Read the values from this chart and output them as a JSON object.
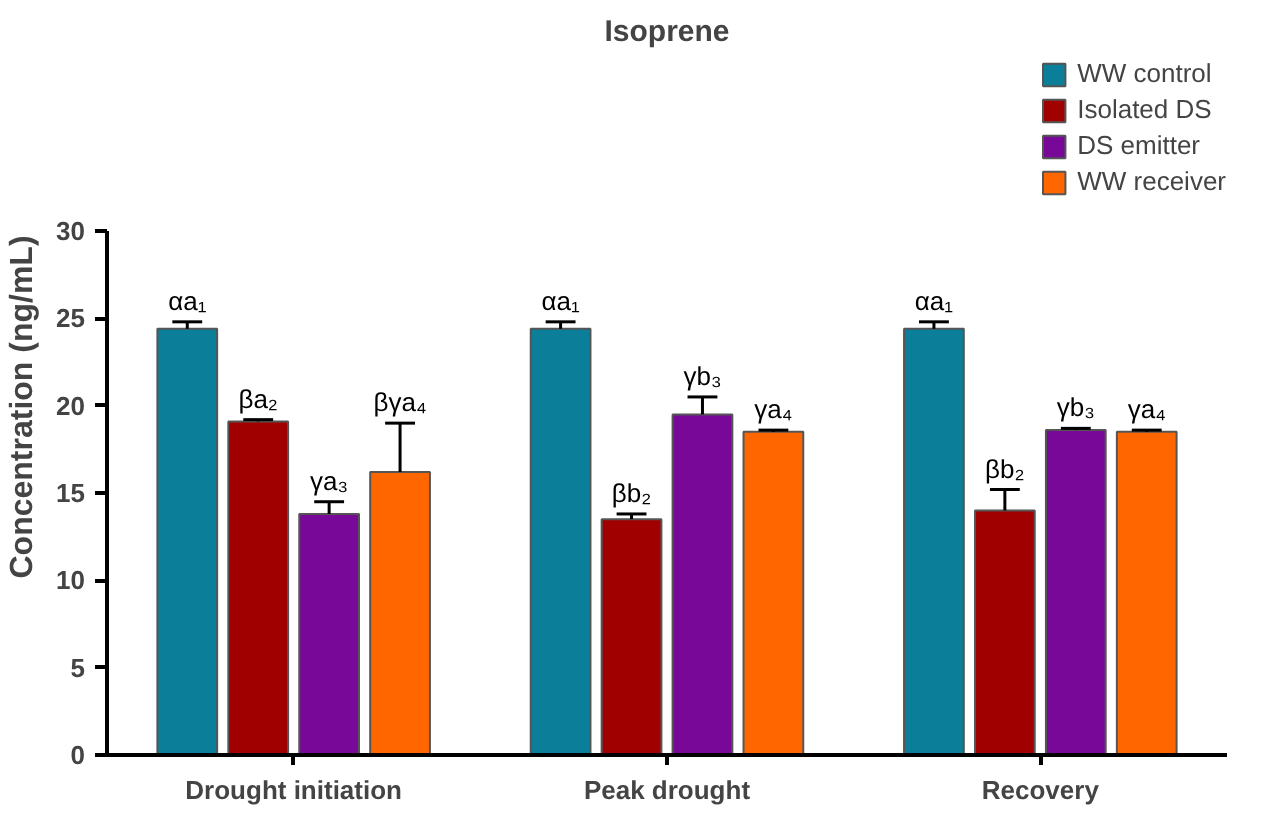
{
  "chart_data": {
    "type": "bar",
    "title": "Isoprene",
    "ylabel": "Concentration (ng/mL)",
    "categories": [
      "Drought initiation",
      "Peak drought",
      "Recovery"
    ],
    "series": [
      {
        "name": "WW control",
        "color": "#0b7f99",
        "values": [
          24.4,
          24.4,
          24.4
        ],
        "errors": [
          0.4,
          0.4,
          0.4
        ],
        "value_labels": [
          "αa₁",
          "αa₁",
          "αa₁"
        ]
      },
      {
        "name": "Isolated DS",
        "color": "#a00000",
        "values": [
          19.1,
          13.5,
          14.0
        ],
        "errors": [
          0.1,
          0.3,
          1.2
        ],
        "value_labels": [
          "βa₂",
          "βb₂",
          "βb₂"
        ]
      },
      {
        "name": "DS emitter",
        "color": "#780898",
        "values": [
          13.8,
          19.5,
          18.6
        ],
        "errors": [
          0.7,
          1.0,
          0.1
        ],
        "value_labels": [
          "γa₃",
          "γb₃",
          "γb₃"
        ]
      },
      {
        "name": "WW receiver",
        "color": "#ff6600",
        "values": [
          16.2,
          18.5,
          18.5
        ],
        "errors": [
          2.8,
          0.1,
          0.1
        ],
        "value_labels": [
          "βγa₄",
          "γa₄",
          "γa₄"
        ]
      }
    ],
    "ylim": [
      0,
      30
    ],
    "yticks": [
      0,
      5,
      10,
      15,
      20,
      25,
      30
    ],
    "grid": false,
    "legend": "top right"
  }
}
